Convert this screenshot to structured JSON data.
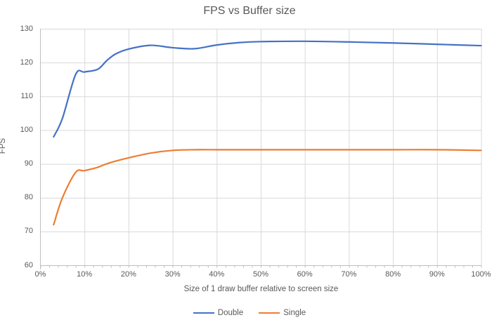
{
  "chart_data": {
    "type": "line",
    "title": "FPS vs Buffer size",
    "xlabel": "Size of 1 draw buffer relative to screen size",
    "ylabel": "FPS",
    "xlim": [
      0,
      100
    ],
    "ylim": [
      60,
      130
    ],
    "y_tick_step": 10,
    "x_tick_step": 10,
    "x_minor_tick_step": 2,
    "x_tick_labels": [
      "0%",
      "10%",
      "20%",
      "30%",
      "40%",
      "50%",
      "60%",
      "70%",
      "80%",
      "90%",
      "100%"
    ],
    "y_tick_labels": [
      "60",
      "70",
      "80",
      "90",
      "100",
      "110",
      "120",
      "130"
    ],
    "grid": true,
    "smooth": true,
    "legend_position": "bottom",
    "x": [
      3,
      5,
      8,
      10,
      13,
      15,
      17,
      20,
      25,
      30,
      35,
      40,
      45,
      50,
      60,
      70,
      80,
      90,
      100
    ],
    "series": [
      {
        "name": "Double",
        "color": "#4472C4",
        "values": [
          98,
          103.5,
          116.5,
          117.2,
          118,
          120.5,
          122.5,
          124,
          125.1,
          124.4,
          124.1,
          125.2,
          125.9,
          126.2,
          126.3,
          126.1,
          125.8,
          125.4,
          125
        ]
      },
      {
        "name": "Single",
        "color": "#ED7D31",
        "values": [
          72,
          80,
          87.5,
          88,
          89,
          90,
          90.8,
          91.8,
          93.2,
          94,
          94.2,
          94.2,
          94.2,
          94.2,
          94.2,
          94.2,
          94.2,
          94.2,
          94
        ]
      }
    ]
  },
  "style": {
    "grid_color": "#D9D9D9",
    "axis_color": "#BFBFBF",
    "text_color": "#595959",
    "background": "#FFFFFF"
  }
}
